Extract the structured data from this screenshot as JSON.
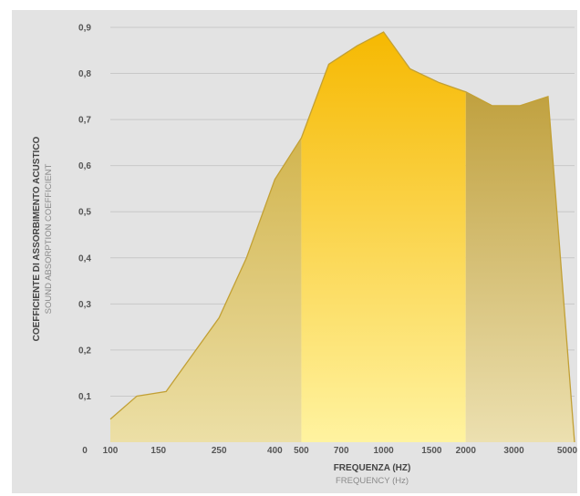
{
  "chart_data": {
    "type": "area",
    "xlabel": "FREQUENZA (HZ)",
    "xlabel_sub": "FREQUENCY (Hz)",
    "ylabel": "COEFFICIENTE DI ASSORBIMENTO ACUSTICO",
    "ylabel_sub": "SOUND ABSORPTION COEFFICIENT",
    "ylim": [
      0,
      0.9
    ],
    "yticks": [
      "0",
      "0,1",
      "0,2",
      "0,3",
      "0,4",
      "0,5",
      "0,6",
      "0,7",
      "0,8",
      "0,9"
    ],
    "xticks": [
      "100",
      "150",
      "250",
      "400",
      "500",
      "700",
      "1000",
      "1500",
      "2000",
      "3000",
      "5000"
    ],
    "xscale": "log",
    "grid": true,
    "points": [
      {
        "x": 100,
        "y": 0.05
      },
      {
        "x": 125,
        "y": 0.1
      },
      {
        "x": 160,
        "y": 0.11
      },
      {
        "x": 250,
        "y": 0.27
      },
      {
        "x": 315,
        "y": 0.4
      },
      {
        "x": 400,
        "y": 0.57
      },
      {
        "x": 500,
        "y": 0.66
      },
      {
        "x": 630,
        "y": 0.82
      },
      {
        "x": 800,
        "y": 0.86
      },
      {
        "x": 1000,
        "y": 0.89
      },
      {
        "x": 1250,
        "y": 0.81
      },
      {
        "x": 1600,
        "y": 0.78
      },
      {
        "x": 2000,
        "y": 0.76
      },
      {
        "x": 2500,
        "y": 0.73
      },
      {
        "x": 3150,
        "y": 0.73
      },
      {
        "x": 4000,
        "y": 0.75
      },
      {
        "x": 5000,
        "y": 0.0
      }
    ],
    "bands": [
      {
        "from": 100,
        "to": 500,
        "color_top": "#c9a630",
        "color_bottom": "#ecdfa6"
      },
      {
        "from": 500,
        "to": 2000,
        "color_top": "#f6b800",
        "color_bottom": "#fff3a0"
      },
      {
        "from": 2000,
        "to": 5000,
        "color_top": "#b8952a",
        "color_bottom": "#ece0b0"
      }
    ],
    "colors": {
      "background": "#e3e3e3",
      "grid": "#c8c8c8",
      "outline": "#c2a035"
    }
  }
}
